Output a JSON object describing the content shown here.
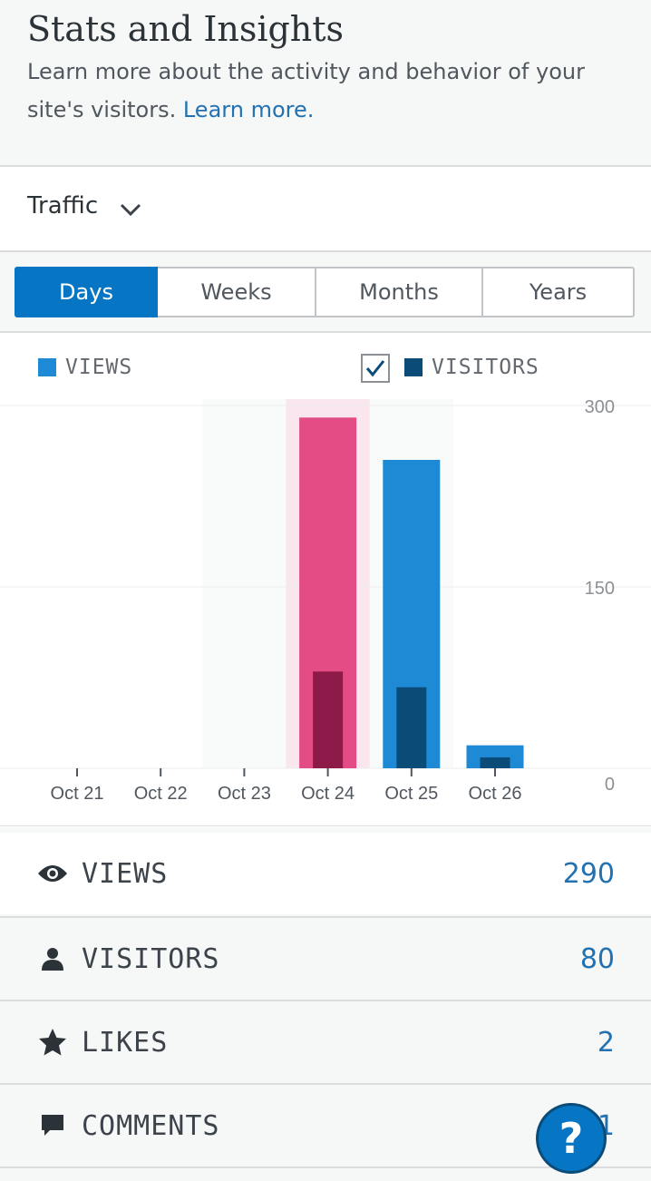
{
  "header": {
    "title": "Stats and Insights",
    "subtitle": "Learn more about the activity and behavior of your site's visitors.",
    "learn_more": "Learn more."
  },
  "traffic": {
    "label": "Traffic",
    "chevron_icon": "chevron-down-icon"
  },
  "period_tabs": [
    {
      "label": "Days",
      "active": true
    },
    {
      "label": "Weeks",
      "active": false
    },
    {
      "label": "Months",
      "active": false
    },
    {
      "label": "Years",
      "active": false
    }
  ],
  "legend": {
    "views_label": "VIEWS",
    "visitors_label": "VISITORS",
    "visitors_checked": true
  },
  "colors": {
    "views": "#1e8ad6",
    "visitors": "#0a4b78",
    "selected_views": "#e34c84",
    "selected_visitors": "#8e1a4a",
    "selected_band": "#f9e6ee",
    "accent": "#0675c4"
  },
  "chart_data": {
    "type": "bar",
    "categories": [
      "Oct 21",
      "Oct 22",
      "Oct 23",
      "Oct 24",
      "Oct 25",
      "Oct 26"
    ],
    "series": [
      {
        "name": "VIEWS",
        "values": [
          0,
          0,
          0,
          290,
          255,
          19
        ]
      },
      {
        "name": "VISITORS",
        "values": [
          0,
          0,
          0,
          80,
          67,
          9
        ]
      }
    ],
    "yticks": [
      "0",
      "150",
      "300"
    ],
    "ylim": [
      0,
      300
    ],
    "selected_category": "Oct 24",
    "grid": true
  },
  "stats": [
    {
      "label": "VIEWS",
      "value": "290",
      "icon": "eye-icon"
    },
    {
      "label": "VISITORS",
      "value": "80",
      "icon": "person-icon"
    },
    {
      "label": "LIKES",
      "value": "2",
      "icon": "star-icon"
    },
    {
      "label": "COMMENTS",
      "value": "1",
      "icon": "comment-icon"
    }
  ],
  "help": {
    "label": "?"
  }
}
